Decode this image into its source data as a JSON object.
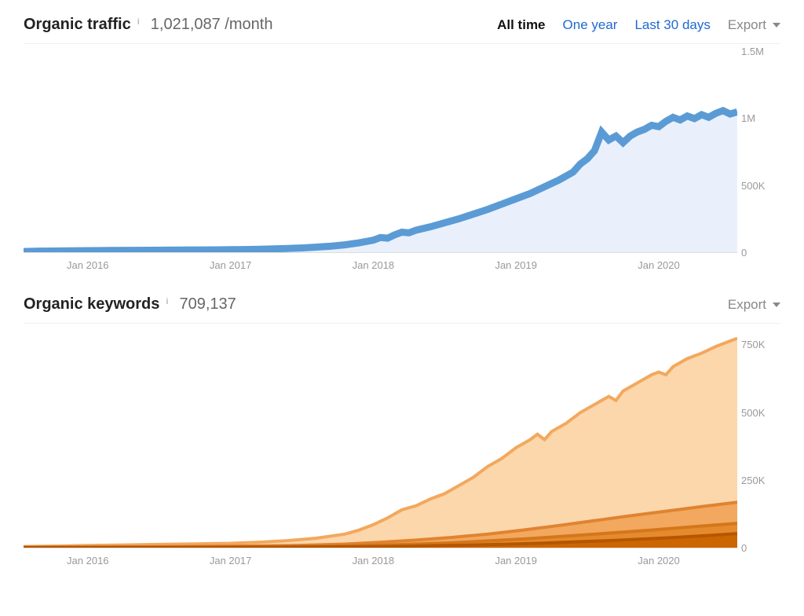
{
  "traffic_panel": {
    "title": "Organic traffic",
    "metric": "1,021,087 /month",
    "tabs": {
      "all_time": "All time",
      "one_year": "One year",
      "last_30": "Last 30 days"
    },
    "active_tab": "all_time",
    "export_label": "Export",
    "chart": {
      "type": "area",
      "line_color": "#5b9bd5",
      "fill_color": "#eaf0fb",
      "line_width": 1.5,
      "background_color": "#ffffff",
      "ylim": [
        0,
        1500000
      ],
      "y_ticks": [
        {
          "value": 1500000,
          "label": "1.5M"
        },
        {
          "value": 1000000,
          "label": "1M"
        },
        {
          "value": 500000,
          "label": "500K"
        },
        {
          "value": 0,
          "label": "0"
        }
      ],
      "x_ticks": [
        {
          "pos_pct": 9,
          "label": "Jan 2016"
        },
        {
          "pos_pct": 29,
          "label": "Jan 2017"
        },
        {
          "pos_pct": 49,
          "label": "Jan 2018"
        },
        {
          "pos_pct": 69,
          "label": "Jan 2019"
        },
        {
          "pos_pct": 89,
          "label": "Jan 2020"
        }
      ],
      "series": [
        {
          "x": 0.0,
          "y": 5000
        },
        {
          "x": 0.02,
          "y": 8000
        },
        {
          "x": 0.04,
          "y": 9000
        },
        {
          "x": 0.06,
          "y": 10000
        },
        {
          "x": 0.09,
          "y": 12000
        },
        {
          "x": 0.12,
          "y": 13000
        },
        {
          "x": 0.15,
          "y": 14000
        },
        {
          "x": 0.18,
          "y": 15000
        },
        {
          "x": 0.21,
          "y": 16000
        },
        {
          "x": 0.24,
          "y": 17000
        },
        {
          "x": 0.27,
          "y": 18000
        },
        {
          "x": 0.29,
          "y": 19000
        },
        {
          "x": 0.31,
          "y": 20000
        },
        {
          "x": 0.33,
          "y": 22000
        },
        {
          "x": 0.35,
          "y": 25000
        },
        {
          "x": 0.37,
          "y": 28000
        },
        {
          "x": 0.39,
          "y": 32000
        },
        {
          "x": 0.41,
          "y": 38000
        },
        {
          "x": 0.43,
          "y": 45000
        },
        {
          "x": 0.45,
          "y": 55000
        },
        {
          "x": 0.47,
          "y": 70000
        },
        {
          "x": 0.49,
          "y": 90000
        },
        {
          "x": 0.5,
          "y": 110000
        },
        {
          "x": 0.51,
          "y": 105000
        },
        {
          "x": 0.52,
          "y": 130000
        },
        {
          "x": 0.53,
          "y": 150000
        },
        {
          "x": 0.54,
          "y": 145000
        },
        {
          "x": 0.55,
          "y": 165000
        },
        {
          "x": 0.57,
          "y": 190000
        },
        {
          "x": 0.59,
          "y": 220000
        },
        {
          "x": 0.61,
          "y": 250000
        },
        {
          "x": 0.63,
          "y": 285000
        },
        {
          "x": 0.65,
          "y": 320000
        },
        {
          "x": 0.67,
          "y": 360000
        },
        {
          "x": 0.69,
          "y": 400000
        },
        {
          "x": 0.71,
          "y": 440000
        },
        {
          "x": 0.73,
          "y": 490000
        },
        {
          "x": 0.75,
          "y": 540000
        },
        {
          "x": 0.77,
          "y": 600000
        },
        {
          "x": 0.78,
          "y": 660000
        },
        {
          "x": 0.79,
          "y": 700000
        },
        {
          "x": 0.8,
          "y": 760000
        },
        {
          "x": 0.81,
          "y": 900000
        },
        {
          "x": 0.82,
          "y": 840000
        },
        {
          "x": 0.83,
          "y": 870000
        },
        {
          "x": 0.84,
          "y": 820000
        },
        {
          "x": 0.85,
          "y": 870000
        },
        {
          "x": 0.86,
          "y": 900000
        },
        {
          "x": 0.87,
          "y": 920000
        },
        {
          "x": 0.88,
          "y": 950000
        },
        {
          "x": 0.89,
          "y": 940000
        },
        {
          "x": 0.9,
          "y": 980000
        },
        {
          "x": 0.91,
          "y": 1010000
        },
        {
          "x": 0.92,
          "y": 990000
        },
        {
          "x": 0.93,
          "y": 1020000
        },
        {
          "x": 0.94,
          "y": 1000000
        },
        {
          "x": 0.95,
          "y": 1030000
        },
        {
          "x": 0.96,
          "y": 1010000
        },
        {
          "x": 0.97,
          "y": 1040000
        },
        {
          "x": 0.98,
          "y": 1060000
        },
        {
          "x": 0.99,
          "y": 1035000
        },
        {
          "x": 1.0,
          "y": 1050000
        }
      ]
    }
  },
  "keywords_panel": {
    "title": "Organic keywords",
    "metric": "709,137",
    "export_label": "Export",
    "chart": {
      "type": "stacked-area",
      "background_color": "#ffffff",
      "ylim": [
        0,
        800000
      ],
      "y_ticks": [
        {
          "value": 750000,
          "label": "750K"
        },
        {
          "value": 500000,
          "label": "500K"
        },
        {
          "value": 250000,
          "label": "250K"
        },
        {
          "value": 0,
          "label": "0"
        }
      ],
      "x_ticks": [
        {
          "pos_pct": 9,
          "label": "Jan 2016"
        },
        {
          "pos_pct": 29,
          "label": "Jan 2017"
        },
        {
          "pos_pct": 49,
          "label": "Jan 2018"
        },
        {
          "pos_pct": 69,
          "label": "Jan 2019"
        },
        {
          "pos_pct": 89,
          "label": "Jan 2020"
        }
      ],
      "layers": [
        {
          "fill_color": "#fbd7ab",
          "line_color": "#f2a85e",
          "line_width": 1,
          "series": [
            {
              "x": 0.0,
              "y": 4000
            },
            {
              "x": 0.05,
              "y": 6000
            },
            {
              "x": 0.09,
              "y": 8000
            },
            {
              "x": 0.14,
              "y": 10000
            },
            {
              "x": 0.19,
              "y": 12000
            },
            {
              "x": 0.24,
              "y": 14000
            },
            {
              "x": 0.29,
              "y": 16000
            },
            {
              "x": 0.33,
              "y": 20000
            },
            {
              "x": 0.37,
              "y": 26000
            },
            {
              "x": 0.41,
              "y": 35000
            },
            {
              "x": 0.45,
              "y": 50000
            },
            {
              "x": 0.47,
              "y": 65000
            },
            {
              "x": 0.49,
              "y": 85000
            },
            {
              "x": 0.51,
              "y": 110000
            },
            {
              "x": 0.53,
              "y": 140000
            },
            {
              "x": 0.55,
              "y": 155000
            },
            {
              "x": 0.57,
              "y": 180000
            },
            {
              "x": 0.59,
              "y": 200000
            },
            {
              "x": 0.61,
              "y": 230000
            },
            {
              "x": 0.63,
              "y": 260000
            },
            {
              "x": 0.65,
              "y": 300000
            },
            {
              "x": 0.67,
              "y": 330000
            },
            {
              "x": 0.69,
              "y": 370000
            },
            {
              "x": 0.71,
              "y": 400000
            },
            {
              "x": 0.72,
              "y": 420000
            },
            {
              "x": 0.73,
              "y": 400000
            },
            {
              "x": 0.74,
              "y": 430000
            },
            {
              "x": 0.76,
              "y": 460000
            },
            {
              "x": 0.78,
              "y": 500000
            },
            {
              "x": 0.8,
              "y": 530000
            },
            {
              "x": 0.82,
              "y": 560000
            },
            {
              "x": 0.83,
              "y": 545000
            },
            {
              "x": 0.84,
              "y": 580000
            },
            {
              "x": 0.86,
              "y": 610000
            },
            {
              "x": 0.88,
              "y": 640000
            },
            {
              "x": 0.89,
              "y": 650000
            },
            {
              "x": 0.9,
              "y": 640000
            },
            {
              "x": 0.91,
              "y": 670000
            },
            {
              "x": 0.93,
              "y": 700000
            },
            {
              "x": 0.95,
              "y": 720000
            },
            {
              "x": 0.97,
              "y": 745000
            },
            {
              "x": 0.99,
              "y": 765000
            },
            {
              "x": 1.0,
              "y": 775000
            }
          ]
        },
        {
          "fill_color": "#f2a85e",
          "line_color": "#e08330",
          "line_width": 1,
          "series": [
            {
              "x": 0.0,
              "y": 1500
            },
            {
              "x": 0.1,
              "y": 2500
            },
            {
              "x": 0.2,
              "y": 3500
            },
            {
              "x": 0.29,
              "y": 5000
            },
            {
              "x": 0.38,
              "y": 8000
            },
            {
              "x": 0.45,
              "y": 13000
            },
            {
              "x": 0.5,
              "y": 20000
            },
            {
              "x": 0.55,
              "y": 28000
            },
            {
              "x": 0.6,
              "y": 38000
            },
            {
              "x": 0.65,
              "y": 50000
            },
            {
              "x": 0.7,
              "y": 65000
            },
            {
              "x": 0.75,
              "y": 82000
            },
            {
              "x": 0.8,
              "y": 100000
            },
            {
              "x": 0.85,
              "y": 118000
            },
            {
              "x": 0.9,
              "y": 135000
            },
            {
              "x": 0.95,
              "y": 152000
            },
            {
              "x": 1.0,
              "y": 168000
            }
          ]
        },
        {
          "fill_color": "#e68a2e",
          "line_color": "#d4761a",
          "line_width": 1,
          "series": [
            {
              "x": 0.0,
              "y": 800
            },
            {
              "x": 0.15,
              "y": 1500
            },
            {
              "x": 0.29,
              "y": 2500
            },
            {
              "x": 0.4,
              "y": 4500
            },
            {
              "x": 0.5,
              "y": 9000
            },
            {
              "x": 0.6,
              "y": 18000
            },
            {
              "x": 0.7,
              "y": 32000
            },
            {
              "x": 0.8,
              "y": 50000
            },
            {
              "x": 0.88,
              "y": 65000
            },
            {
              "x": 0.94,
              "y": 78000
            },
            {
              "x": 1.0,
              "y": 90000
            }
          ]
        },
        {
          "fill_color": "#cc6600",
          "line_color": "#b55600",
          "line_width": 1,
          "series": [
            {
              "x": 0.0,
              "y": 300
            },
            {
              "x": 0.2,
              "y": 800
            },
            {
              "x": 0.35,
              "y": 1800
            },
            {
              "x": 0.5,
              "y": 4000
            },
            {
              "x": 0.62,
              "y": 9000
            },
            {
              "x": 0.72,
              "y": 16000
            },
            {
              "x": 0.82,
              "y": 26000
            },
            {
              "x": 0.9,
              "y": 36000
            },
            {
              "x": 0.96,
              "y": 45000
            },
            {
              "x": 1.0,
              "y": 52000
            }
          ]
        }
      ]
    }
  },
  "colors": {
    "tab_link": "#1e69d2",
    "muted_text": "#888888",
    "axis_text": "#999999",
    "border": "#f0f0f0"
  }
}
